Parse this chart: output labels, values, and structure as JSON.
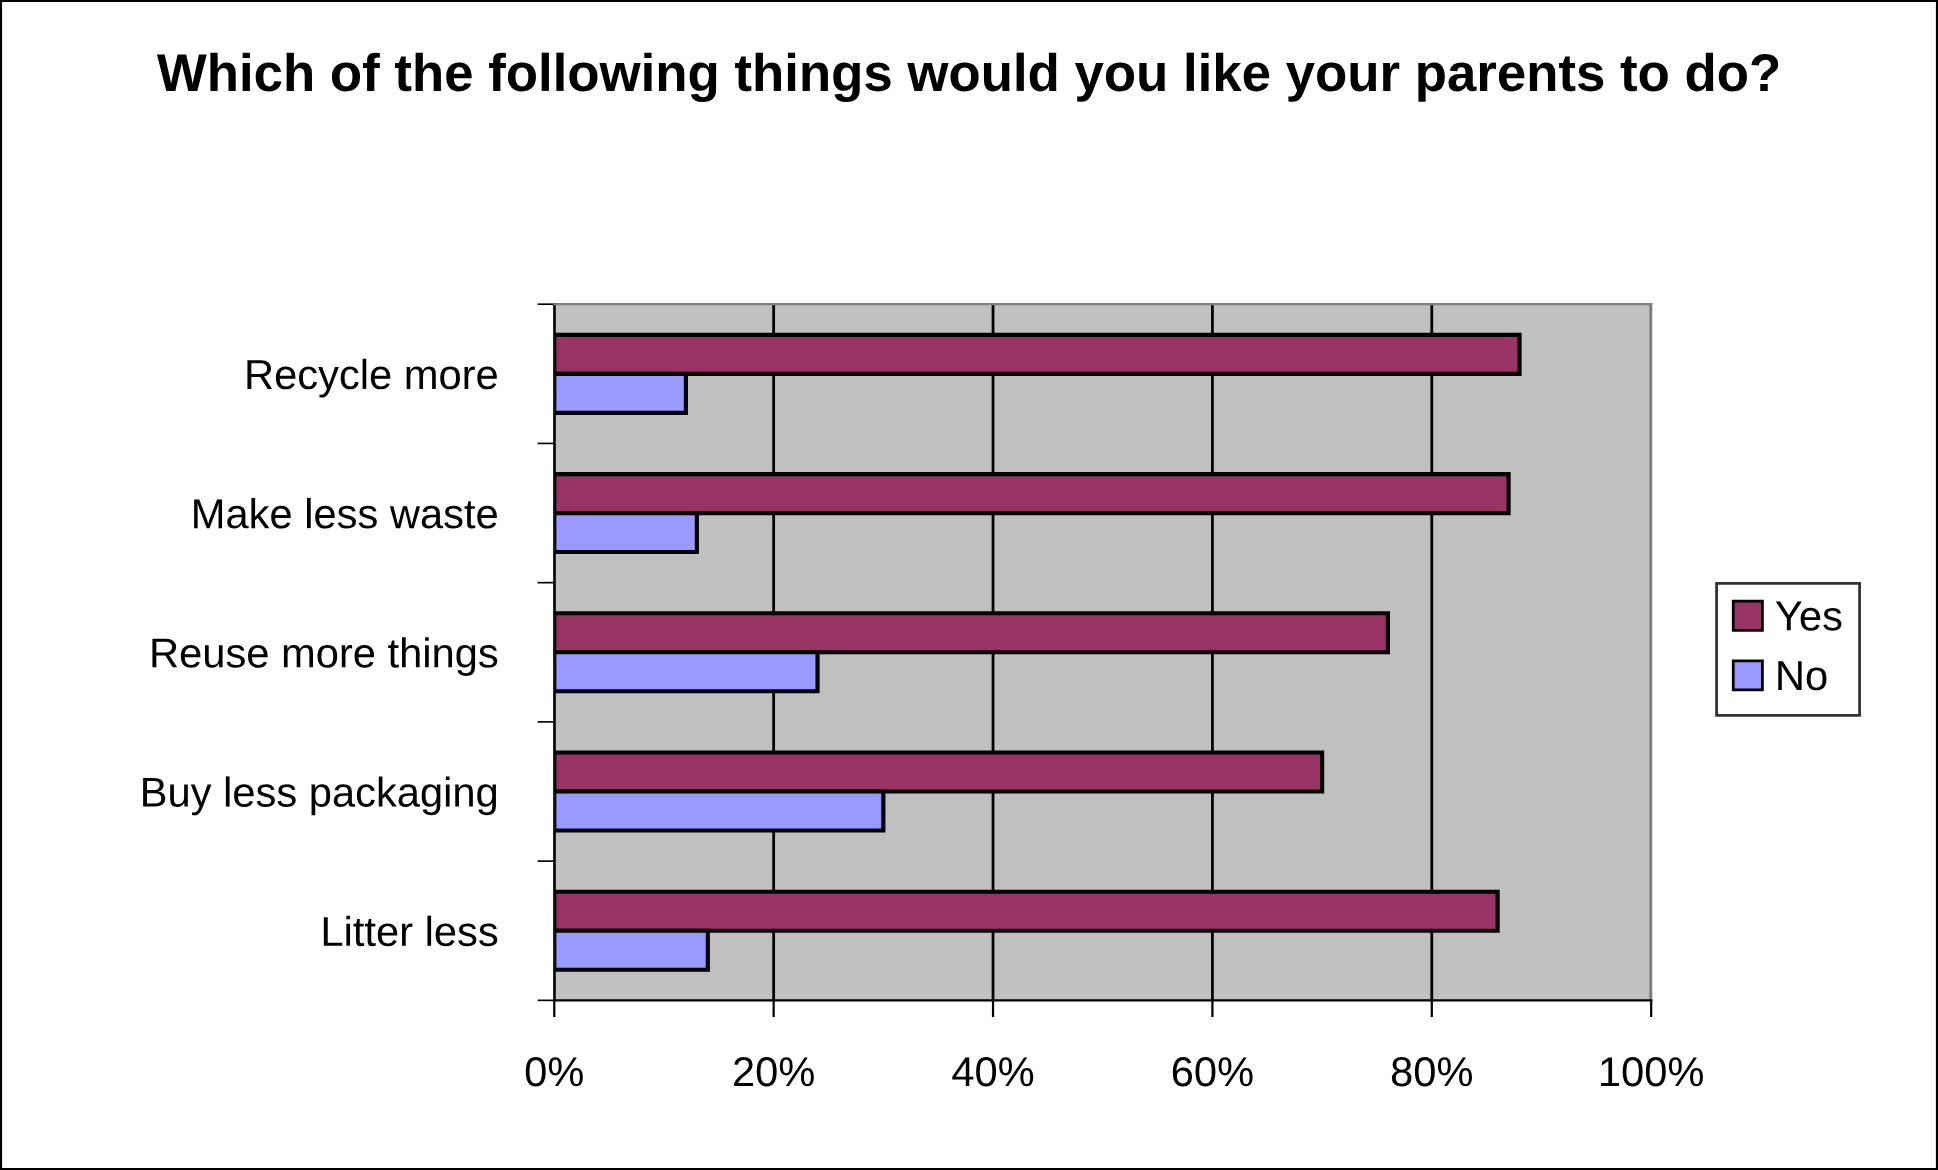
{
  "chart_data": {
    "type": "bar",
    "orientation": "horizontal",
    "title": "Which of the following things would you like your parents to do?",
    "categories": [
      "Recycle more",
      "Make less waste",
      "Reuse more things",
      "Buy less packaging",
      "Litter less"
    ],
    "series": [
      {
        "name": "Yes",
        "color": "#993366",
        "values": [
          88,
          87,
          76,
          70,
          86
        ]
      },
      {
        "name": "No",
        "color": "#9999ff",
        "values": [
          12,
          13,
          24,
          30,
          14
        ]
      }
    ],
    "xlim": [
      0,
      100
    ],
    "xticks": [
      {
        "value": 0,
        "label": "0%"
      },
      {
        "value": 20,
        "label": "20%"
      },
      {
        "value": 40,
        "label": "40%"
      },
      {
        "value": 60,
        "label": "60%"
      },
      {
        "value": 80,
        "label": "80%"
      },
      {
        "value": 100,
        "label": "100%"
      }
    ],
    "grid": "x",
    "legend": "right"
  }
}
